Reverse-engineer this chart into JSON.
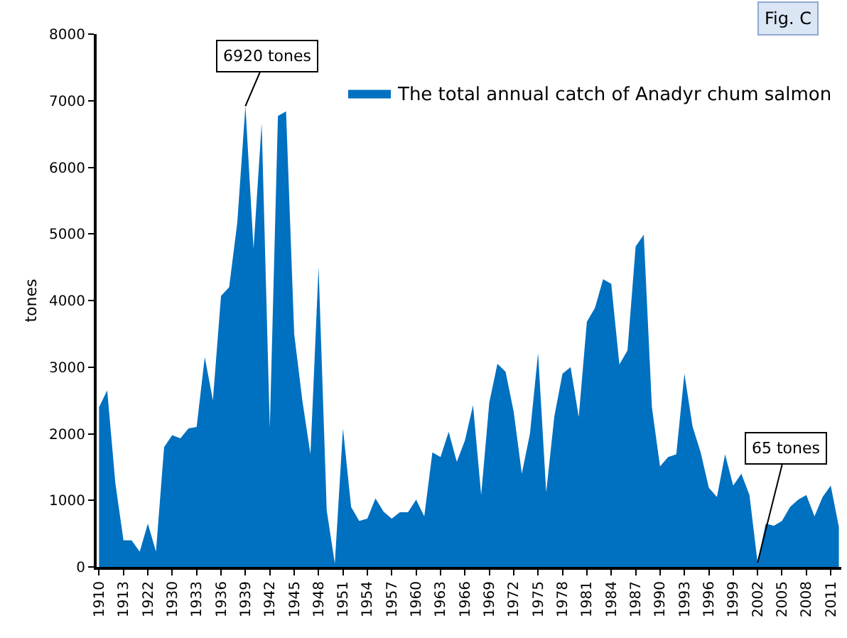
{
  "chart_data": {
    "type": "area",
    "categories": [
      "1910",
      null,
      null,
      "1913",
      null,
      null,
      "1922",
      null,
      null,
      "1930",
      null,
      null,
      "1933",
      null,
      null,
      "1936",
      null,
      null,
      "1939",
      null,
      null,
      "1942",
      null,
      null,
      "1945",
      null,
      null,
      "1948",
      null,
      null,
      "1951",
      null,
      null,
      "1954",
      null,
      null,
      "1957",
      null,
      null,
      "1960",
      null,
      null,
      "1963",
      null,
      null,
      "1966",
      null,
      null,
      "1969",
      null,
      null,
      "1972",
      null,
      null,
      "1975",
      null,
      null,
      "1978",
      null,
      null,
      "1981",
      null,
      null,
      "1984",
      null,
      null,
      "1987",
      null,
      null,
      "1990",
      null,
      null,
      "1993",
      null,
      null,
      "1996",
      null,
      null,
      "1999",
      null,
      null,
      "2002",
      null,
      null,
      "2005",
      null,
      null,
      "2008",
      null,
      null,
      "2011",
      null
    ],
    "series": [
      {
        "name": "The total annual catch of Anadyr chum salmon",
        "color": "#0070c0",
        "values": [
          2400,
          2650,
          1260,
          400,
          400,
          230,
          650,
          230,
          1800,
          1980,
          1930,
          2080,
          2100,
          3150,
          2500,
          4070,
          4200,
          5170,
          6920,
          4780,
          6660,
          2080,
          6770,
          6840,
          3500,
          2500,
          1690,
          4500,
          850,
          50,
          2080,
          900,
          690,
          725,
          1030,
          830,
          725,
          820,
          820,
          1010,
          760,
          1720,
          1650,
          2030,
          1580,
          1900,
          2430,
          1080,
          2470,
          3050,
          2930,
          2330,
          1400,
          2000,
          3210,
          1120,
          2260,
          2900,
          3000,
          2250,
          3680,
          3890,
          4320,
          4250,
          3040,
          3250,
          4810,
          4990,
          2400,
          1510,
          1650,
          1690,
          2900,
          2110,
          1720,
          1190,
          1050,
          1690,
          1220,
          1400,
          1080,
          65,
          650,
          620,
          690,
          900,
          1010,
          1080,
          760,
          1050,
          1220,
          600
        ]
      }
    ],
    "ylabel": "tones",
    "ylim": [
      0,
      8000
    ],
    "yticks": [
      0,
      1000,
      2000,
      3000,
      4000,
      5000,
      6000,
      7000,
      8000
    ],
    "legend": "top right",
    "annotations": [
      {
        "text": "6920 tones",
        "x": "1939",
        "y": 6920
      },
      {
        "text": "65 tones",
        "x": "2002",
        "y": 65
      },
      "Fig. C"
    ]
  }
}
